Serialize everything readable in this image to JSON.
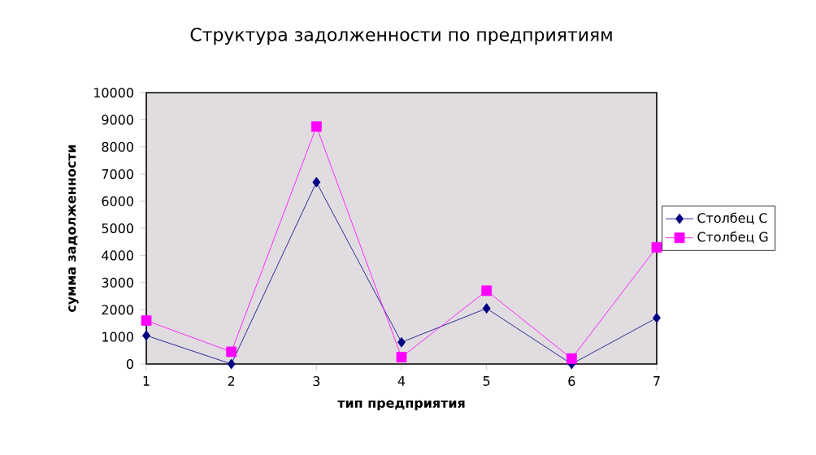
{
  "chart_data": {
    "type": "line",
    "title": "Структура задолженности по предприятиям",
    "xlabel": "тип предприятия",
    "ylabel": "сумма задолженности",
    "categories": [
      "1",
      "2",
      "3",
      "4",
      "5",
      "6",
      "7"
    ],
    "series": [
      {
        "name": "Столбец C",
        "color": "#000080",
        "marker": "diamond",
        "values": [
          1050,
          0,
          6700,
          800,
          2050,
          0,
          1700
        ]
      },
      {
        "name": "Столбец G",
        "color": "#ff00ff",
        "marker": "square",
        "values": [
          1600,
          450,
          8750,
          250,
          2700,
          200,
          4300
        ]
      }
    ],
    "ylim": [
      0,
      10000
    ],
    "yticks": [
      0,
      1000,
      2000,
      3000,
      4000,
      5000,
      6000,
      7000,
      8000,
      9000,
      10000
    ],
    "grid": false,
    "legend": "right"
  }
}
